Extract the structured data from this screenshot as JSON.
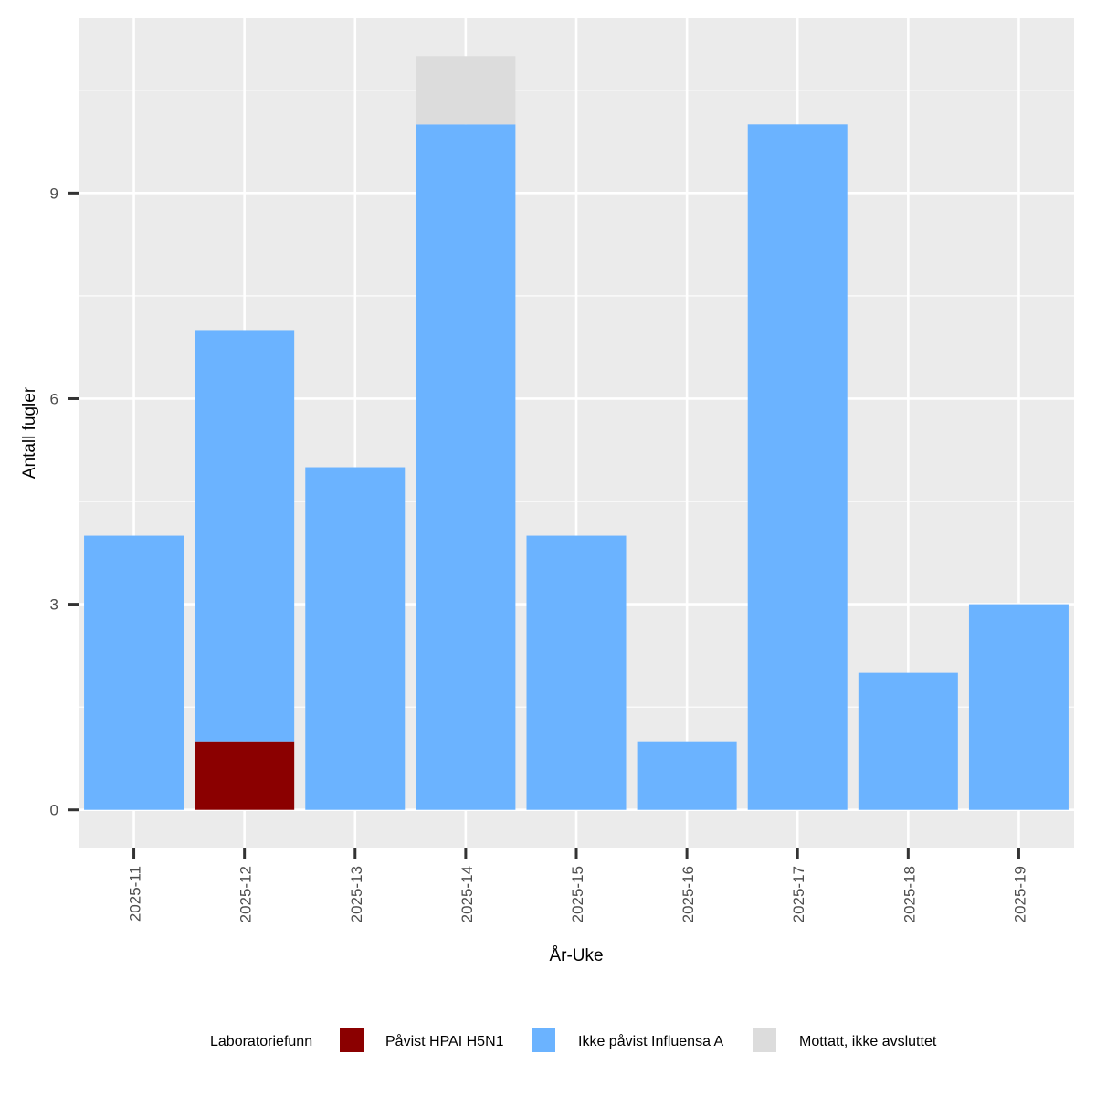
{
  "chart_data": {
    "type": "bar",
    "stacked": true,
    "categories": [
      "2025-11",
      "2025-12",
      "2025-13",
      "2025-14",
      "2025-15",
      "2025-16",
      "2025-17",
      "2025-18",
      "2025-19"
    ],
    "series": [
      {
        "name": "Påvist HPAI H5N1",
        "color": "#8B0000",
        "values": [
          0,
          1,
          0,
          0,
          0,
          0,
          0,
          0,
          0
        ]
      },
      {
        "name": "Ikke påvist Influensa A",
        "color": "#6BB3FF",
        "values": [
          4,
          6,
          5,
          10,
          4,
          1,
          10,
          2,
          3
        ]
      },
      {
        "name": "Mottatt, ikke avsluttet",
        "color": "#DCDCDC",
        "values": [
          0,
          0,
          0,
          1,
          0,
          0,
          0,
          0,
          0
        ]
      }
    ],
    "xlabel": "År-Uke",
    "ylabel": "Antall fugler",
    "yticks": [
      0,
      3,
      6,
      9
    ],
    "ylim": [
      -0.55,
      11.55
    ],
    "grid": true,
    "legend": {
      "title": "Laboratoriefunn",
      "position": "bottom"
    },
    "panel_background": "#EBEBEB",
    "grid_color": "#FFFFFF"
  }
}
